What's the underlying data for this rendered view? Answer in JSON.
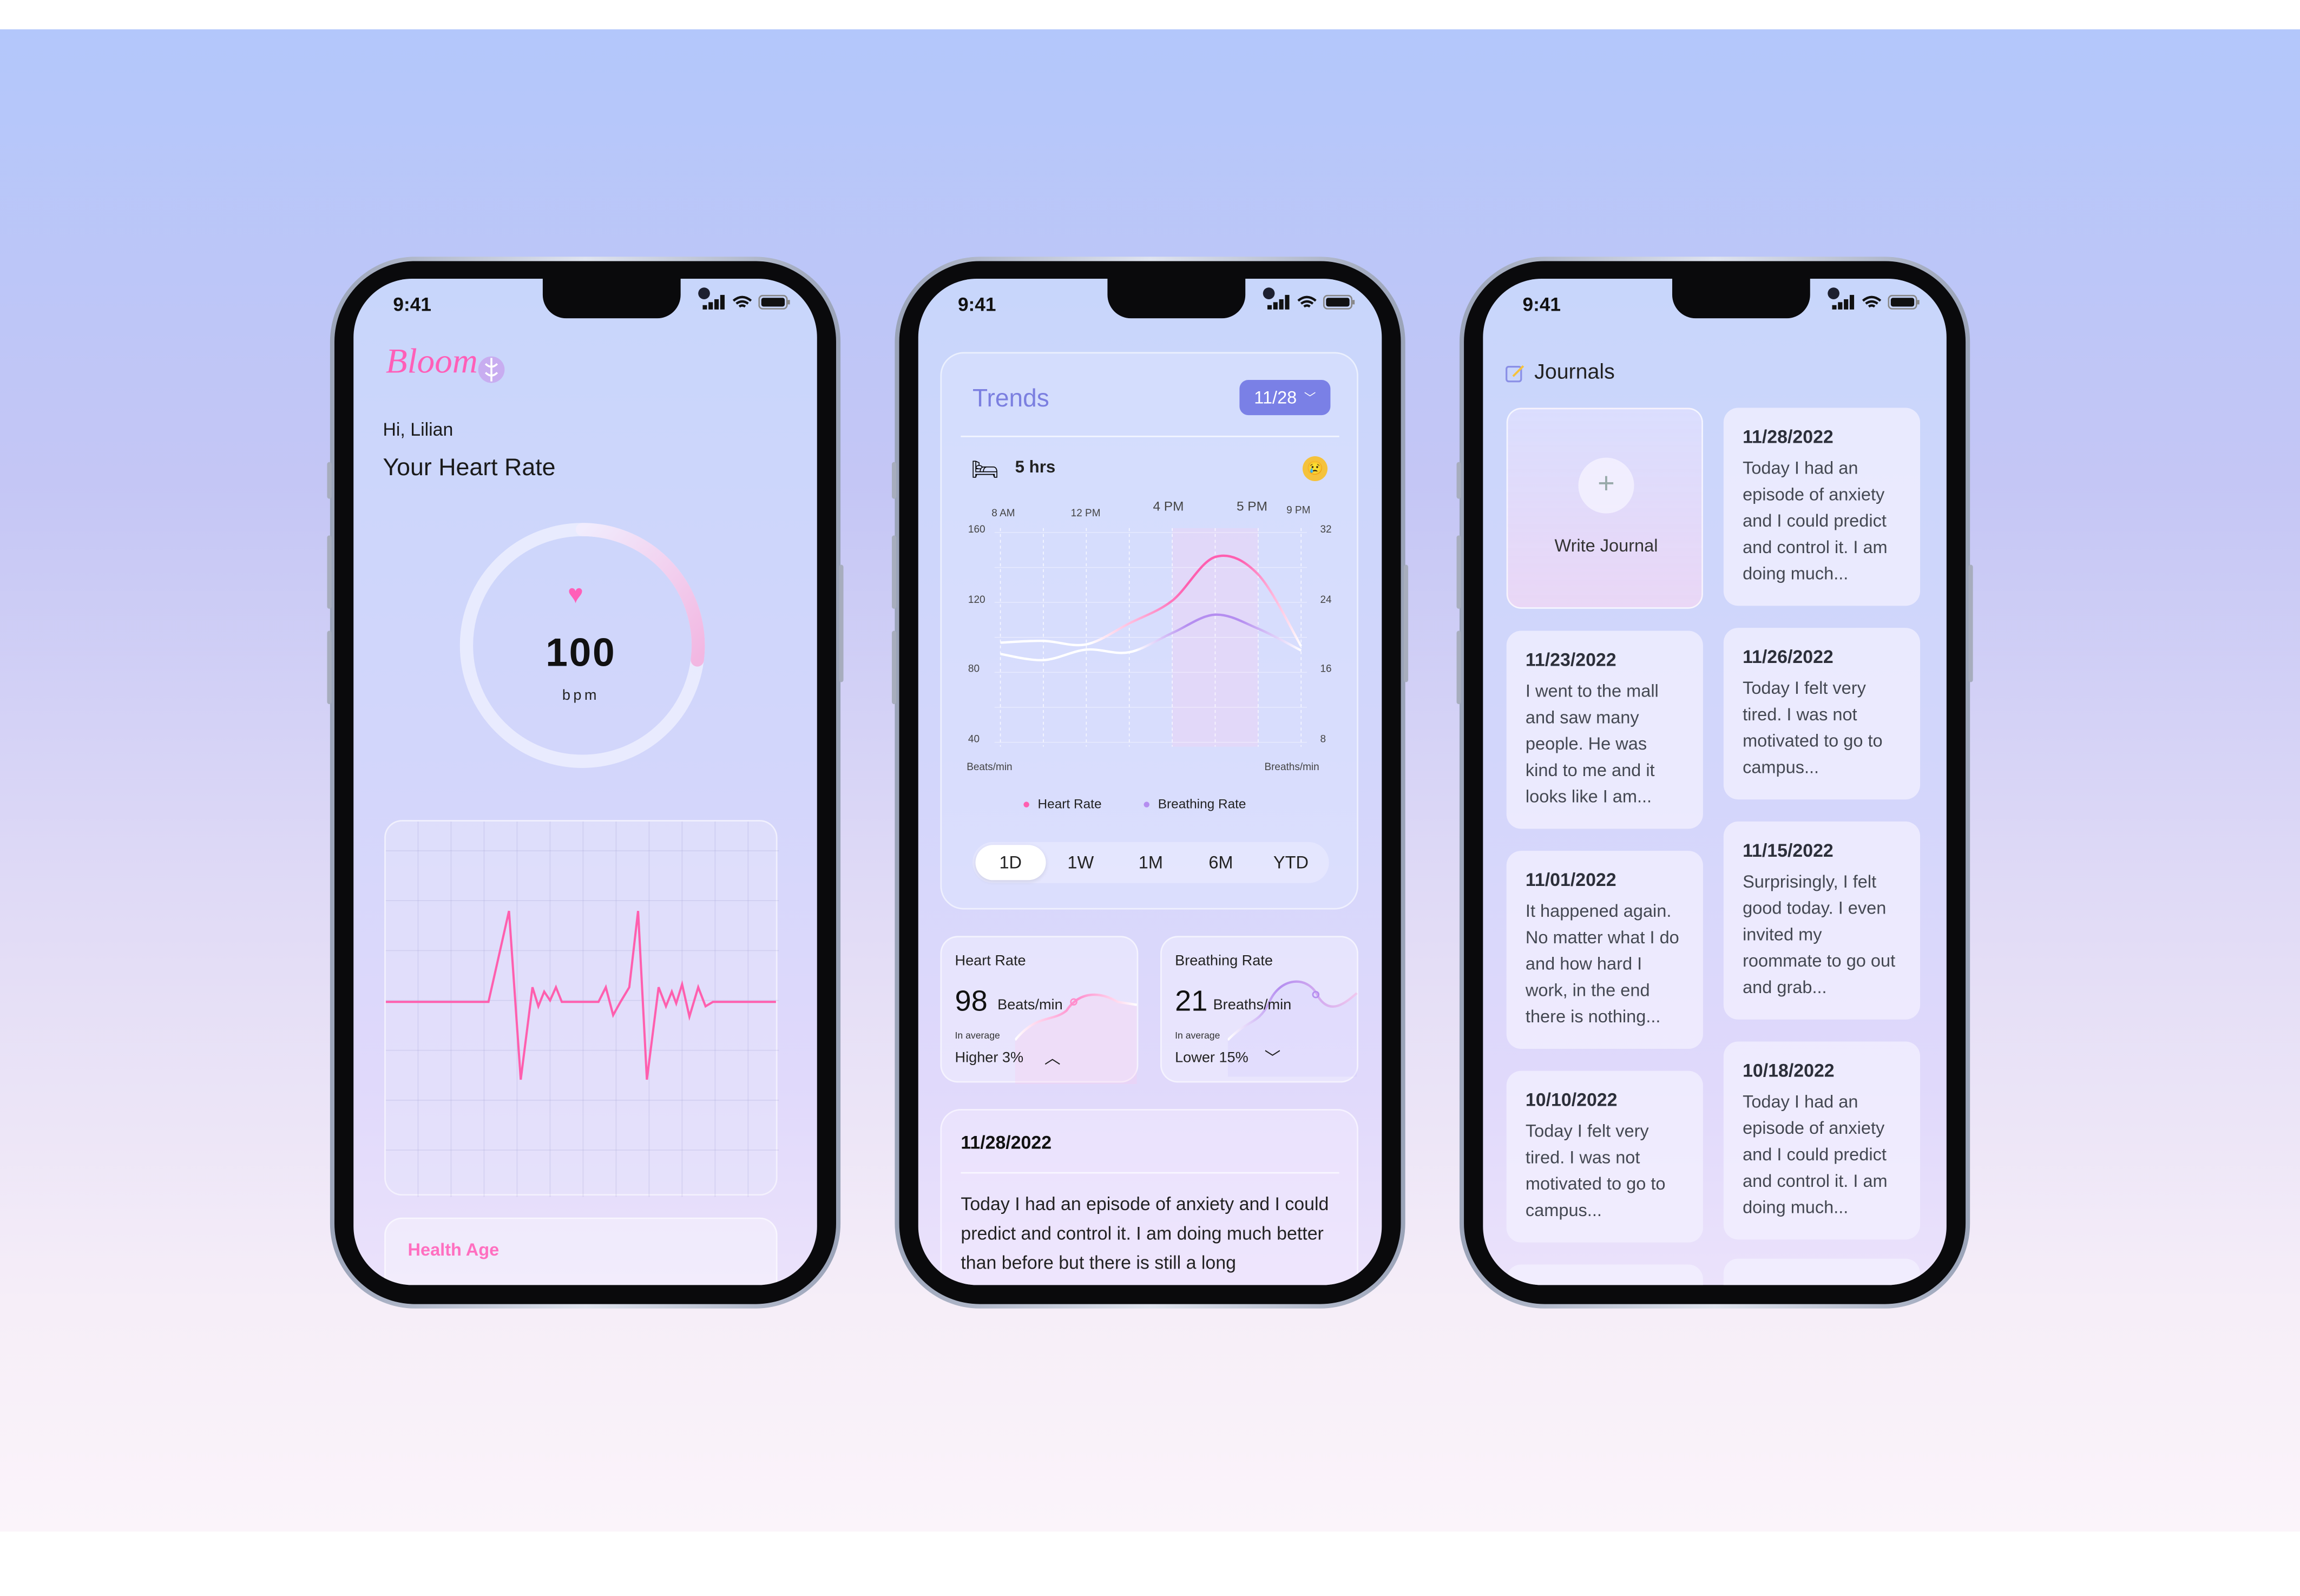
{
  "status_time": "9:41",
  "home": {
    "logo": "Bloom",
    "greeting": "Hi, Lilian",
    "title": "Your Heart Rate",
    "heart_rate_value": "100",
    "heart_rate_unit": "bpm",
    "ring_fill_fraction": 0.27,
    "health_age_label": "Health Age",
    "accent_color": "#ff5fb8"
  },
  "trends": {
    "title": "Trends",
    "date_dropdown": "11/28",
    "sleep_icon": "bed-icon",
    "sleep_duration": "5 hrs",
    "mood_icon": "crying-face-icon",
    "tabs": [
      "1D",
      "1W",
      "1M",
      "6M",
      "YTD"
    ],
    "active_tab": "1D",
    "heart_card": {
      "title": "Heart Rate",
      "value": "98",
      "unit": "Beats/min",
      "caption": "In average",
      "change": "Higher 3%",
      "direction": "up"
    },
    "breath_card": {
      "title": "Breathing Rate",
      "value": "21",
      "unit": "Breaths/min",
      "caption": "In average",
      "change": "Lower 15%",
      "direction": "down"
    },
    "journal": {
      "date": "11/28/2022",
      "text": "Today I had an episode of anxiety and I could predict and control it. I am doing much better than before but there is still a long"
    }
  },
  "chart_data": {
    "type": "line",
    "x_tick_labels": [
      "8 AM",
      "12 PM",
      "4 PM",
      "5 PM",
      "9 PM"
    ],
    "ylabel_left": "Beats/min",
    "ylabel_right": "Breaths/min",
    "ylim_left": [
      40,
      160
    ],
    "ylim_right": [
      8,
      32
    ],
    "yticks_left": [
      "160",
      "120",
      "80",
      "40"
    ],
    "yticks_right": [
      "32",
      "24",
      "16",
      "8"
    ],
    "grid": true,
    "highlight_range": [
      "4 PM",
      "5 PM"
    ],
    "legend_placement": "bottom",
    "series": [
      {
        "name": "Heart Rate",
        "axis": "left",
        "color": "#ff5fb0",
        "values": [
          97,
          98,
          96,
          108,
          121,
          146,
          136,
          95
        ]
      },
      {
        "name": "Breathing Rate",
        "axis": "right",
        "color": "#b58ef0",
        "values": [
          18.1,
          17.4,
          18.6,
          18.3,
          20.5,
          22.6,
          21,
          18.5
        ]
      }
    ]
  },
  "journals": {
    "title": "Journals",
    "write_label": "Write Journal",
    "left": [
      {
        "date": "11/23/2022",
        "text": "I went to the mall and saw many people. He was kind to me and it looks like I am..."
      },
      {
        "date": "11/01/2022",
        "text": "It happened again. No matter what I do and how hard I work, in the end there is nothing..."
      },
      {
        "date": "10/10/2022",
        "text": "Today I felt very tired. I was not motivated to go to campus..."
      }
    ],
    "right": [
      {
        "date": "11/28/2022",
        "text": "Today I had an episode of anxiety and I could predict and control it. I am doing much..."
      },
      {
        "date": "11/26/2022",
        "text": "Today I felt very tired. I was not motivated to go to campus..."
      },
      {
        "date": "11/15/2022",
        "text": "Surprisingly, I felt good today. I even invited my roommate to go out and grab..."
      },
      {
        "date": "10/18/2022",
        "text": "Today I had an episode of anxiety and I could predict and control it. I am doing much..."
      }
    ]
  }
}
